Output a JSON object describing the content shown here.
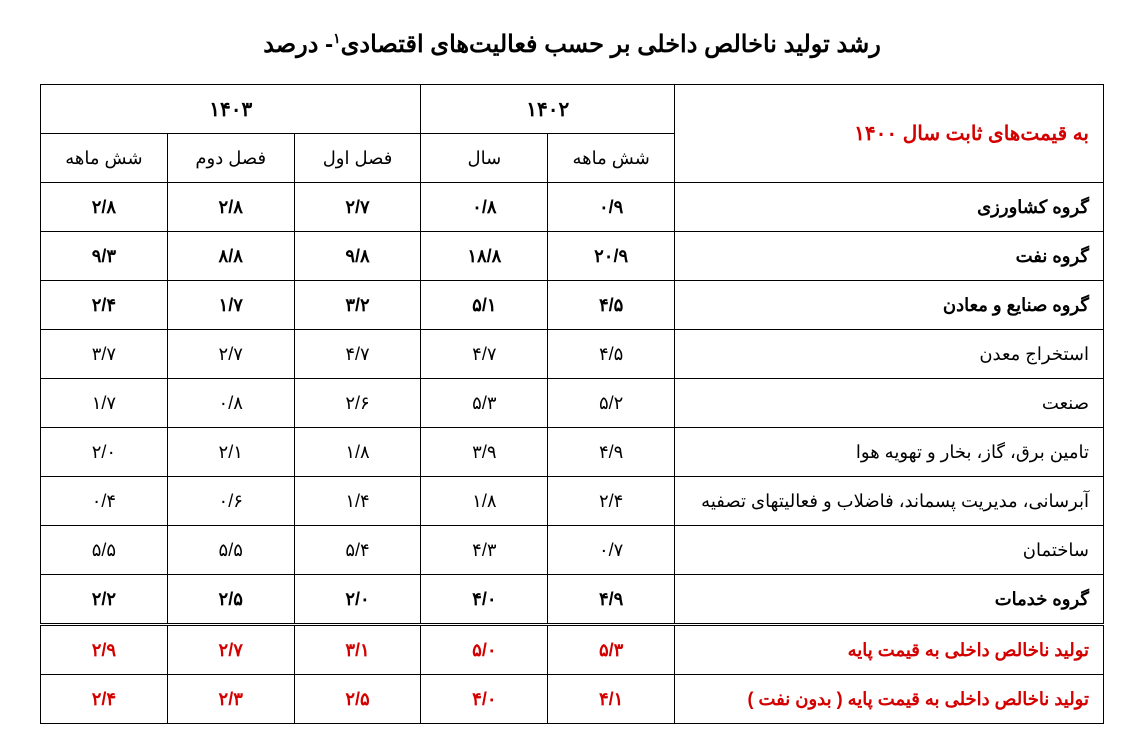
{
  "title_pre": "رشد تولید ناخالص داخلی بر حسب فعالیت‌های اقتصادی",
  "title_sup": "۱",
  "title_post": "- درصد",
  "header_note": "به قیمت‌های ثابت سال ۱۴۰۰",
  "year_1402": "۱۴۰۲",
  "year_1403": "۱۴۰۳",
  "sub_1402_6m": "شش ماهه",
  "sub_1402_year": "سال",
  "sub_1403_q1": "فصل اول",
  "sub_1403_q2": "فصل دوم",
  "sub_1403_6m": "شش ماهه",
  "rows": {
    "agri": {
      "label": "گروه کشاورزی",
      "c1": "۰/۹",
      "c2": "۰/۸",
      "c3": "۲/۷",
      "c4": "۲/۸",
      "c5": "۲/۸"
    },
    "oil": {
      "label": "گروه نفت",
      "c1": "۲۰/۹",
      "c2": "۱۸/۸",
      "c3": "۹/۸",
      "c4": "۸/۸",
      "c5": "۹/۳"
    },
    "industry": {
      "label": "گروه صنایع و معادن",
      "c1": "۴/۵",
      "c2": "۵/۱",
      "c3": "۳/۲",
      "c4": "۱/۷",
      "c5": "۲/۴"
    },
    "mining": {
      "label": "استخراج معدن",
      "c1": "۴/۵",
      "c2": "۴/۷",
      "c3": "۴/۷",
      "c4": "۲/۷",
      "c5": "۳/۷"
    },
    "manufacturing": {
      "label": "صنعت",
      "c1": "۵/۲",
      "c2": "۵/۳",
      "c3": "۲/۶",
      "c4": "۰/۸",
      "c5": "۱/۷"
    },
    "utilities": {
      "label": "تامین برق، گاز، بخار و تهویه هوا",
      "c1": "۴/۹",
      "c2": "۳/۹",
      "c3": "۱/۸",
      "c4": "۲/۱",
      "c5": "۲/۰"
    },
    "water": {
      "label": "آبرسانی، مدیریت پسماند، فاضلاب و فعالیتهای تصفیه",
      "c1": "۲/۴",
      "c2": "۱/۸",
      "c3": "۱/۴",
      "c4": "۰/۶",
      "c5": "۰/۴"
    },
    "construction": {
      "label": "ساختمان",
      "c1": "۰/۷",
      "c2": "۴/۳",
      "c3": "۵/۴",
      "c4": "۵/۵",
      "c5": "۵/۵"
    },
    "services": {
      "label": "گروه خدمات",
      "c1": "۴/۹",
      "c2": "۴/۰",
      "c3": "۲/۰",
      "c4": "۲/۵",
      "c5": "۲/۲"
    },
    "gdp": {
      "label": "تولید ناخالص داخلی به قیمت پایه",
      "c1": "۵/۳",
      "c2": "۵/۰",
      "c3": "۳/۱",
      "c4": "۲/۷",
      "c5": "۲/۹"
    },
    "gdp_no_oil": {
      "label": "تولید ناخالص داخلی به قیمت پایه ( بدون نفت )",
      "c1": "۴/۱",
      "c2": "۴/۰",
      "c3": "۲/۵",
      "c4": "۲/۳",
      "c5": "۲/۴"
    }
  }
}
